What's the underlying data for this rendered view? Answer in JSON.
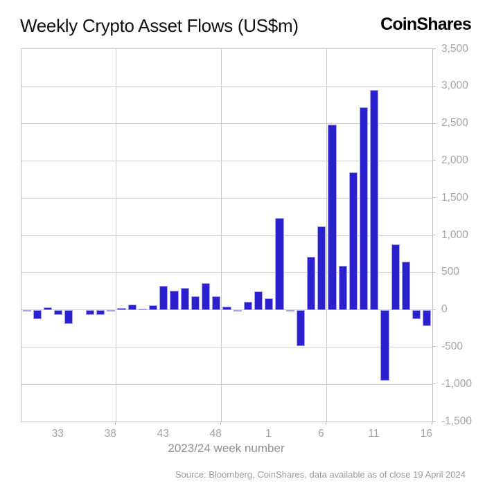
{
  "header": {
    "title": "Weekly Crypto Asset Flows (US$m)",
    "logo": "CoinShares"
  },
  "chart_data": {
    "type": "bar",
    "title": "Weekly Crypto Asset Flows (US$m)",
    "xlabel": "2023/24 week number",
    "ylabel": "",
    "ylim": [
      -1500,
      3500
    ],
    "grid": true,
    "legend_position": "none",
    "bar_color": "#2a20ce",
    "bar_border_color": "#aaa5e8",
    "categories": [
      30,
      31,
      32,
      33,
      34,
      35,
      36,
      37,
      38,
      39,
      40,
      41,
      42,
      43,
      44,
      45,
      46,
      47,
      48,
      49,
      50,
      51,
      52,
      1,
      2,
      3,
      4,
      5,
      6,
      7,
      8,
      9,
      10,
      11,
      12,
      13,
      14,
      15,
      16
    ],
    "values": [
      -20,
      -120,
      35,
      -70,
      -190,
      0,
      -65,
      -65,
      -10,
      20,
      75,
      10,
      60,
      320,
      260,
      290,
      180,
      355,
      180,
      40,
      -15,
      110,
      245,
      150,
      1230,
      -25,
      -485,
      710,
      1120,
      2490,
      595,
      1850,
      2720,
      2950,
      -950,
      875,
      645,
      -125,
      -220
    ],
    "ytick_values": [
      3500,
      3000,
      2500,
      2000,
      1500,
      1000,
      500,
      0,
      -500,
      -1000,
      -1500
    ],
    "ytick_labels": [
      "3,500",
      "3,000",
      "2,500",
      "2,000",
      "1,500",
      "1,000",
      "500",
      "0",
      "-500",
      "-1,000",
      "-1,500"
    ],
    "xtick_labels": [
      "33",
      "38",
      "43",
      "48",
      "1",
      "6",
      "11",
      "16"
    ],
    "xtick_slots": [
      3,
      8,
      13,
      18,
      23,
      28,
      33,
      38
    ],
    "vgrid_boundary_slots": [
      9,
      19,
      29
    ]
  },
  "footer": {
    "source": "Source: Bloomberg, CoinShares, data available as of close 19 April 2024"
  }
}
